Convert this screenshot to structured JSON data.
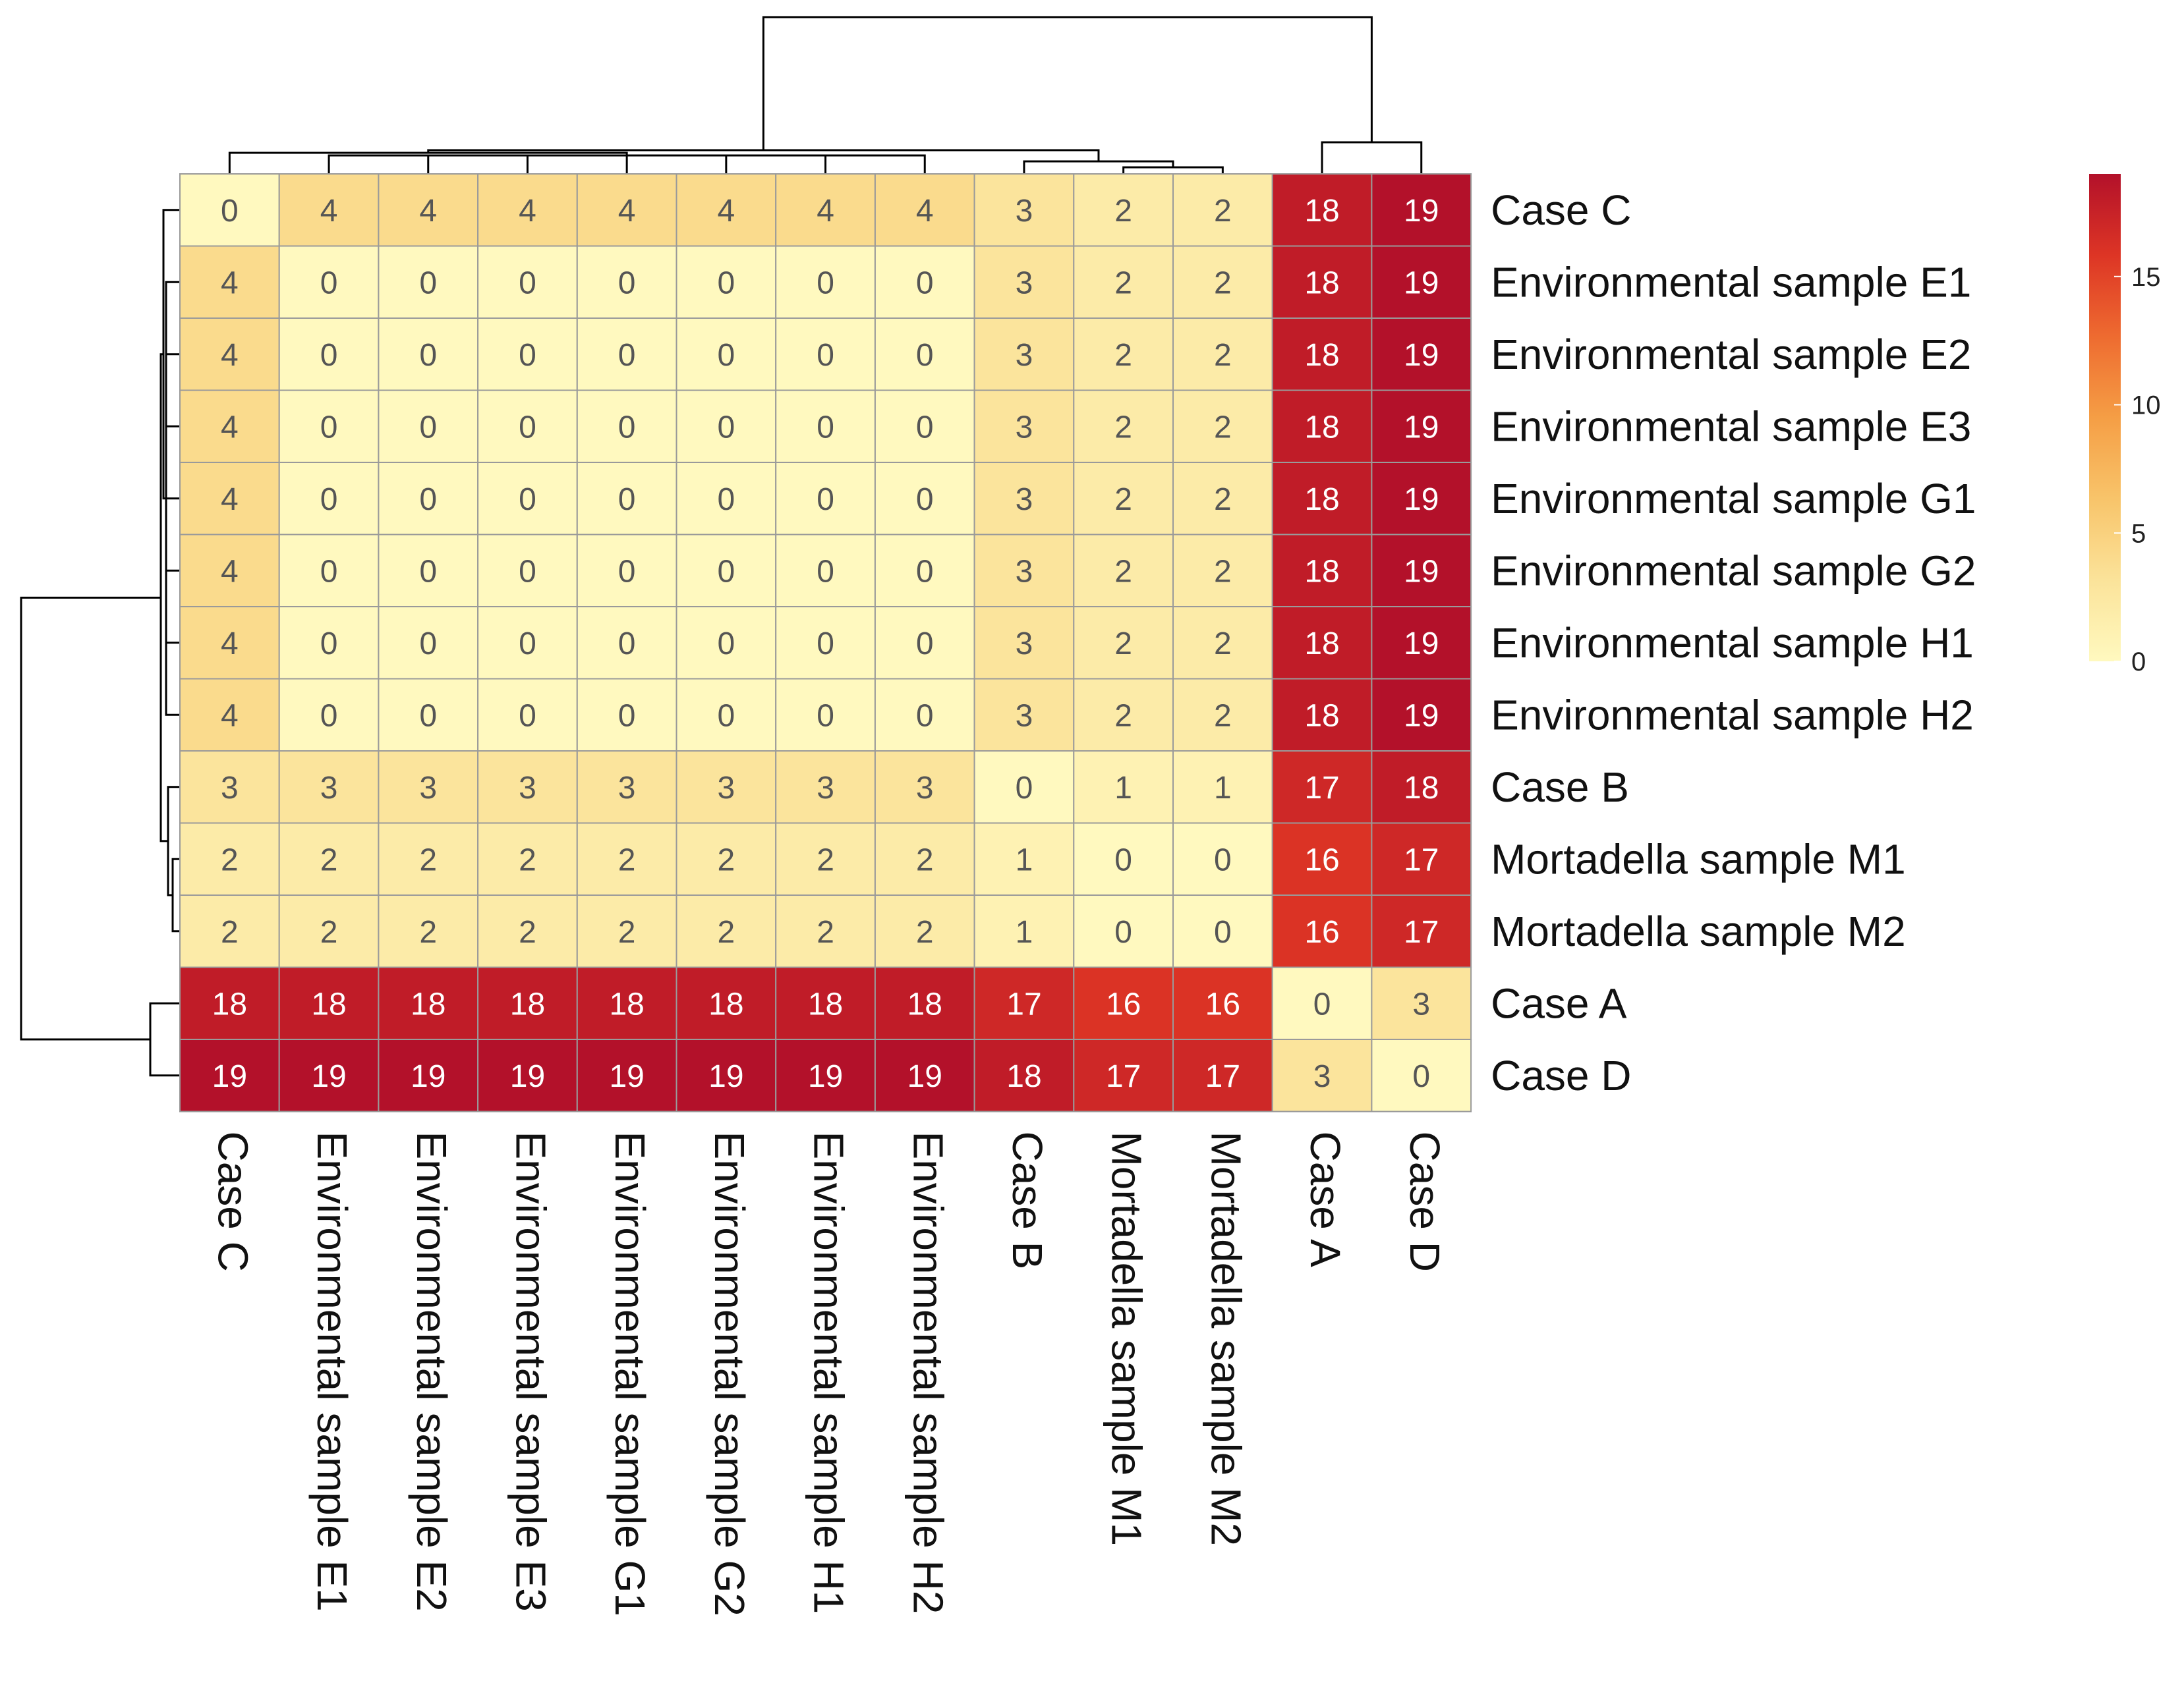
{
  "chart_data": {
    "type": "heatmap",
    "title": "",
    "xlabel": "",
    "ylabel": "",
    "rows": [
      "Case C",
      "Environmental sample E1",
      "Environmental sample E2",
      "Environmental sample E3",
      "Environmental sample G1",
      "Environmental sample G2",
      "Environmental sample H1",
      "Environmental sample H2",
      "Case B",
      "Mortadella sample M1",
      "Mortadella sample M2",
      "Case A",
      "Case D"
    ],
    "columns": [
      "Case C",
      "Environmental sample E1",
      "Environmental sample E2",
      "Environmental sample E3",
      "Environmental sample G1",
      "Environmental sample G2",
      "Environmental sample H1",
      "Environmental sample H2",
      "Case B",
      "Mortadella sample M1",
      "Mortadella sample M2",
      "Case A",
      "Case D"
    ],
    "values": [
      [
        0,
        4,
        4,
        4,
        4,
        4,
        4,
        4,
        3,
        2,
        2,
        18,
        19
      ],
      [
        4,
        0,
        0,
        0,
        0,
        0,
        0,
        0,
        3,
        2,
        2,
        18,
        19
      ],
      [
        4,
        0,
        0,
        0,
        0,
        0,
        0,
        0,
        3,
        2,
        2,
        18,
        19
      ],
      [
        4,
        0,
        0,
        0,
        0,
        0,
        0,
        0,
        3,
        2,
        2,
        18,
        19
      ],
      [
        4,
        0,
        0,
        0,
        0,
        0,
        0,
        0,
        3,
        2,
        2,
        18,
        19
      ],
      [
        4,
        0,
        0,
        0,
        0,
        0,
        0,
        0,
        3,
        2,
        2,
        18,
        19
      ],
      [
        4,
        0,
        0,
        0,
        0,
        0,
        0,
        0,
        3,
        2,
        2,
        18,
        19
      ],
      [
        4,
        0,
        0,
        0,
        0,
        0,
        0,
        0,
        3,
        2,
        2,
        18,
        19
      ],
      [
        3,
        3,
        3,
        3,
        3,
        3,
        3,
        3,
        0,
        1,
        1,
        17,
        18
      ],
      [
        2,
        2,
        2,
        2,
        2,
        2,
        2,
        2,
        1,
        0,
        0,
        16,
        17
      ],
      [
        2,
        2,
        2,
        2,
        2,
        2,
        2,
        2,
        1,
        0,
        0,
        16,
        17
      ],
      [
        18,
        18,
        18,
        18,
        18,
        18,
        18,
        18,
        17,
        16,
        16,
        0,
        3
      ],
      [
        19,
        19,
        19,
        19,
        19,
        19,
        19,
        19,
        18,
        17,
        17,
        3,
        0
      ]
    ],
    "colorbar": {
      "ticks": [
        0,
        5,
        10,
        15
      ],
      "range": [
        0,
        19
      ],
      "colors": [
        "#fff9bf",
        "#fbe39a",
        "#f8c46a",
        "#f59e45",
        "#ee6b30",
        "#dd3525",
        "#b3112a"
      ]
    },
    "dendrogram": "present on rows (left) and columns (top)"
  }
}
